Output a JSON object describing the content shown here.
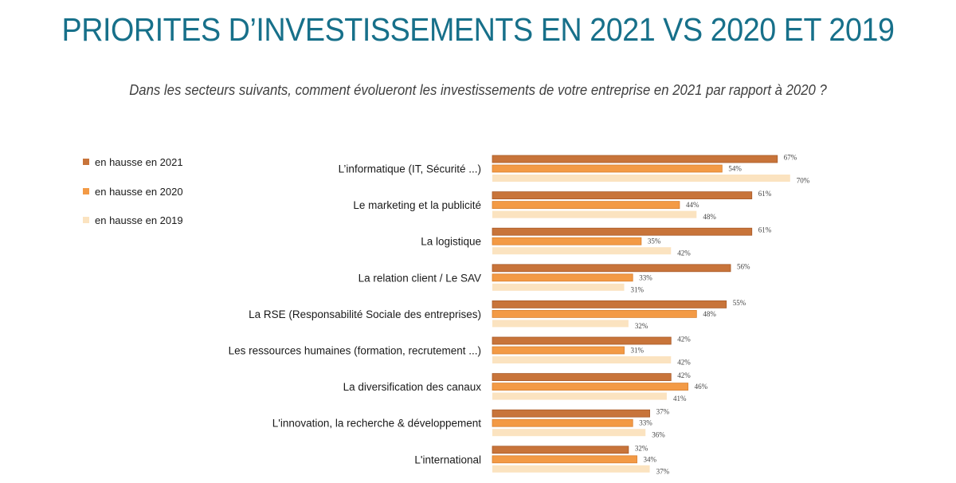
{
  "header": {
    "title": "PRIORITES D’INVESTISSEMENTS EN 2021 VS 2020 ET 2019",
    "subtitle": "Dans les secteurs suivants, comment évolueront les investissements de votre entreprise en 2021 par rapport à 2020 ?"
  },
  "colors": {
    "title": "#17708a",
    "series_2021": "#c8743a",
    "series_2020": "#f39a45",
    "series_2019": "#fbe3c0"
  },
  "chart_data": {
    "type": "bar",
    "orientation": "horizontal",
    "title": "PRIORITES D’INVESTISSEMENTS EN 2021 VS 2020 ET 2019",
    "subtitle": "Dans les secteurs suivants, comment évolueront les investissements de votre entreprise en 2021 par rapport à 2020 ?",
    "xlabel": "",
    "ylabel": "",
    "xlim": [
      0,
      100
    ],
    "unit": "%",
    "grid": false,
    "legend_position": "left",
    "categories": [
      "L’informatique (IT, Sécurité ...)",
      "Le marketing et la publicité",
      "La logistique",
      "La relation client / Le SAV",
      "La RSE (Responsabilité Sociale des entreprises)",
      "Les ressources humaines (formation, recrutement ...)",
      "La diversification des canaux",
      "L'innovation, la recherche & développement",
      "L'international"
    ],
    "series": [
      {
        "name": "en hausse en 2021",
        "color": "#c8743a",
        "values": [
          67,
          61,
          61,
          56,
          55,
          42,
          42,
          37,
          32
        ]
      },
      {
        "name": "en hausse en 2020",
        "color": "#f39a45",
        "values": [
          54,
          44,
          35,
          33,
          48,
          31,
          46,
          33,
          34
        ]
      },
      {
        "name": "en hausse en 2019",
        "color": "#fbe3c0",
        "values": [
          70,
          48,
          42,
          31,
          32,
          42,
          41,
          36,
          37
        ]
      }
    ]
  }
}
